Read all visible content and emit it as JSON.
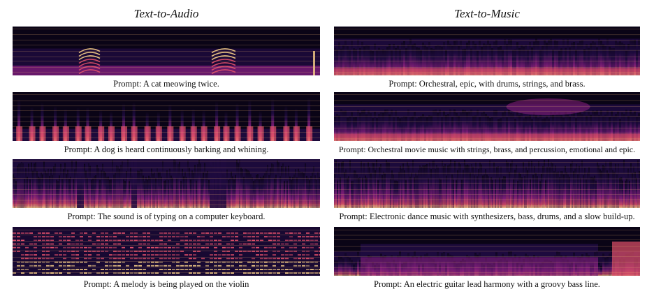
{
  "columns": {
    "left": {
      "title": "Text-to-Audio"
    },
    "right": {
      "title": "Text-to-Music"
    }
  },
  "panels": {
    "left": [
      {
        "caption": "Prompt: A cat meowing twice.",
        "style": "cat"
      },
      {
        "caption": "Prompt: A dog is heard continuously barking and whining.",
        "style": "dog"
      },
      {
        "caption": "Prompt: The sound is of typing on a computer keyboard.",
        "style": "typing"
      },
      {
        "caption": "Prompt: A melody is being played on the violin",
        "style": "violin"
      }
    ],
    "right": [
      {
        "caption": "Prompt: Orchestral, epic, with drums, strings, and brass.",
        "style": "orch1"
      },
      {
        "caption": "Prompt: Orchestral movie music with strings, brass, and percussion, emotional and epic.",
        "style": "orch2"
      },
      {
        "caption": "Prompt: Electronic dance music with synthesizers, bass, drums, and a slow build-up.",
        "style": "edm"
      },
      {
        "caption": "Prompt: An electric guitar lead harmony with a groovy bass line.",
        "style": "guitar"
      }
    ]
  },
  "colors": {
    "background": "#0a0416",
    "low": "#1e0b3f",
    "mid": "#8a2080",
    "high": "#e0506a",
    "peak": "#fbd38a",
    "gridline": "#e8b070"
  }
}
